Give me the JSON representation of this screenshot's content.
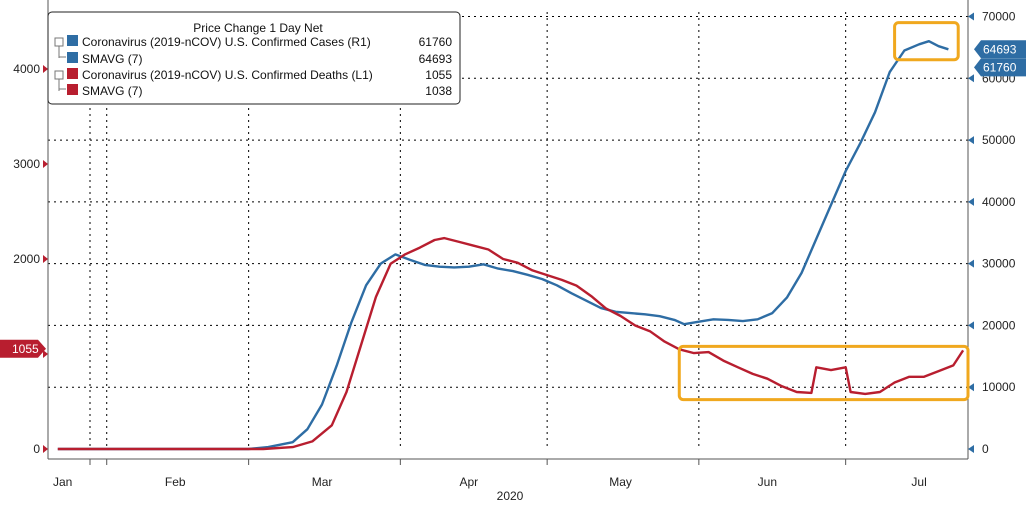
{
  "chart_data": {
    "type": "line",
    "title": "",
    "legend": {
      "header": "Price Change 1 Day Net",
      "placement": "top-left",
      "entries": [
        {
          "label": "Coronavirus (2019-nCOV) U.S. Confirmed Cases",
          "axis": "(R1)",
          "value": "61760",
          "color": "#2e6da4"
        },
        {
          "label": "SMAVG (7)",
          "axis": "",
          "value": "64693",
          "color": "#2e6da4"
        },
        {
          "label": "Coronavirus (2019-nCOV) U.S. Confirmed Deaths",
          "axis": "(L1)",
          "value": "1055",
          "color": "#b81e2f"
        },
        {
          "label": "SMAVG (7)",
          "axis": "",
          "value": "1038",
          "color": "#b81e2f"
        }
      ]
    },
    "x_axis": {
      "start": "2020-01-20",
      "end": "2020-07-26",
      "year_label": "2020",
      "month_labels": [
        {
          "label": "Jan",
          "date": "2020-01-23"
        },
        {
          "label": "Feb",
          "date": "2020-02-15"
        },
        {
          "label": "Mar",
          "date": "2020-03-16"
        },
        {
          "label": "Apr",
          "date": "2020-04-15"
        },
        {
          "label": "May",
          "date": "2020-05-16"
        },
        {
          "label": "Jun",
          "date": "2020-06-15"
        },
        {
          "label": "Jul",
          "date": "2020-07-16"
        }
      ]
    },
    "y_left": {
      "range": [
        0,
        4600
      ],
      "ticks": [
        0,
        1000,
        2000,
        3000,
        4000
      ],
      "tick_labels": [
        "0",
        "",
        "2000",
        "3000",
        "4000"
      ]
    },
    "y_right": {
      "range": [
        0,
        70000
      ],
      "ticks": [
        0,
        10000,
        20000,
        30000,
        40000,
        50000,
        60000,
        70000
      ],
      "tick_labels": [
        "0",
        "10000",
        "20000",
        "30000",
        "40000",
        "50000",
        "60000",
        "70000"
      ]
    },
    "grid": true,
    "series": [
      {
        "name": "SMAVG (7)",
        "axis": "right",
        "color": "#2e6da4",
        "points": [
          [
            "2020-01-22",
            0
          ],
          [
            "2020-02-15",
            0
          ],
          [
            "2020-03-01",
            0
          ],
          [
            "2020-03-05",
            300
          ],
          [
            "2020-03-10",
            1100
          ],
          [
            "2020-03-13",
            3200
          ],
          [
            "2020-03-16",
            7200
          ],
          [
            "2020-03-19",
            13500
          ],
          [
            "2020-03-22",
            20500
          ],
          [
            "2020-03-25",
            26500
          ],
          [
            "2020-03-28",
            30000
          ],
          [
            "2020-03-31",
            31500
          ],
          [
            "2020-04-03",
            30600
          ],
          [
            "2020-04-06",
            29800
          ],
          [
            "2020-04-09",
            29500
          ],
          [
            "2020-04-12",
            29400
          ],
          [
            "2020-04-15",
            29500
          ],
          [
            "2020-04-18",
            29900
          ],
          [
            "2020-04-21",
            29200
          ],
          [
            "2020-04-24",
            28800
          ],
          [
            "2020-04-27",
            28200
          ],
          [
            "2020-04-30",
            27500
          ],
          [
            "2020-05-03",
            26500
          ],
          [
            "2020-05-06",
            25200
          ],
          [
            "2020-05-09",
            24000
          ],
          [
            "2020-05-12",
            22800
          ],
          [
            "2020-05-15",
            22200
          ],
          [
            "2020-05-18",
            22000
          ],
          [
            "2020-05-21",
            21800
          ],
          [
            "2020-05-24",
            21500
          ],
          [
            "2020-05-27",
            20900
          ],
          [
            "2020-05-29",
            20200
          ],
          [
            "2020-06-01",
            20600
          ],
          [
            "2020-06-04",
            21000
          ],
          [
            "2020-06-07",
            20900
          ],
          [
            "2020-06-10",
            20700
          ],
          [
            "2020-06-13",
            21000
          ],
          [
            "2020-06-16",
            22000
          ],
          [
            "2020-06-19",
            24500
          ],
          [
            "2020-06-22",
            28500
          ],
          [
            "2020-06-25",
            34000
          ],
          [
            "2020-06-28",
            39500
          ],
          [
            "2020-07-01",
            45000
          ],
          [
            "2020-07-04",
            49500
          ],
          [
            "2020-07-07",
            54500
          ],
          [
            "2020-07-10",
            61000
          ],
          [
            "2020-07-13",
            64500
          ],
          [
            "2020-07-16",
            65500
          ],
          [
            "2020-07-18",
            66000
          ],
          [
            "2020-07-20",
            65200
          ],
          [
            "2020-07-22",
            64693
          ]
        ]
      },
      {
        "name": "SMAVG (7)",
        "axis": "left",
        "color": "#b81e2f",
        "points": [
          [
            "2020-01-22",
            0
          ],
          [
            "2020-03-04",
            0
          ],
          [
            "2020-03-10",
            20
          ],
          [
            "2020-03-14",
            80
          ],
          [
            "2020-03-18",
            250
          ],
          [
            "2020-03-21",
            600
          ],
          [
            "2020-03-24",
            1100
          ],
          [
            "2020-03-27",
            1600
          ],
          [
            "2020-03-30",
            1950
          ],
          [
            "2020-04-02",
            2050
          ],
          [
            "2020-04-05",
            2120
          ],
          [
            "2020-04-08",
            2200
          ],
          [
            "2020-04-10",
            2220
          ],
          [
            "2020-04-13",
            2180
          ],
          [
            "2020-04-16",
            2140
          ],
          [
            "2020-04-19",
            2100
          ],
          [
            "2020-04-22",
            2000
          ],
          [
            "2020-04-25",
            1960
          ],
          [
            "2020-04-28",
            1880
          ],
          [
            "2020-05-01",
            1830
          ],
          [
            "2020-05-04",
            1780
          ],
          [
            "2020-05-07",
            1720
          ],
          [
            "2020-05-10",
            1610
          ],
          [
            "2020-05-13",
            1480
          ],
          [
            "2020-05-16",
            1400
          ],
          [
            "2020-05-19",
            1300
          ],
          [
            "2020-05-22",
            1240
          ],
          [
            "2020-05-25",
            1130
          ],
          [
            "2020-05-28",
            1050
          ],
          [
            "2020-05-31",
            1010
          ],
          [
            "2020-06-03",
            1020
          ],
          [
            "2020-06-06",
            930
          ],
          [
            "2020-06-09",
            860
          ],
          [
            "2020-06-12",
            790
          ],
          [
            "2020-06-15",
            740
          ],
          [
            "2020-06-18",
            660
          ],
          [
            "2020-06-21",
            600
          ],
          [
            "2020-06-24",
            590
          ],
          [
            "2020-06-25",
            860
          ],
          [
            "2020-06-28",
            830
          ],
          [
            "2020-07-01",
            860
          ],
          [
            "2020-07-02",
            600
          ],
          [
            "2020-07-05",
            580
          ],
          [
            "2020-07-08",
            600
          ],
          [
            "2020-07-11",
            700
          ],
          [
            "2020-07-14",
            760
          ],
          [
            "2020-07-17",
            760
          ],
          [
            "2020-07-20",
            820
          ],
          [
            "2020-07-23",
            880
          ],
          [
            "2020-07-25",
            1038
          ]
        ]
      }
    ],
    "value_tags": [
      {
        "axis": "left",
        "value": 1055,
        "label": "1055",
        "color": "#b81e2f"
      },
      {
        "axis": "right",
        "value": 64693,
        "label": "64693",
        "color": "#2e6da4"
      },
      {
        "axis": "right",
        "value": 61760,
        "label": "61760",
        "color": "#2e6da4"
      }
    ],
    "highlights": [
      {
        "series_axis": "right",
        "x_from": "2020-07-11",
        "x_to": "2020-07-24",
        "y_from": 63000,
        "y_to": 69000,
        "color": "#f0a81e"
      },
      {
        "series_axis": "left",
        "x_from": "2020-05-28",
        "x_to": "2020-07-26",
        "y_from": 520,
        "y_to": 1080,
        "color": "#f0a81e"
      }
    ]
  }
}
